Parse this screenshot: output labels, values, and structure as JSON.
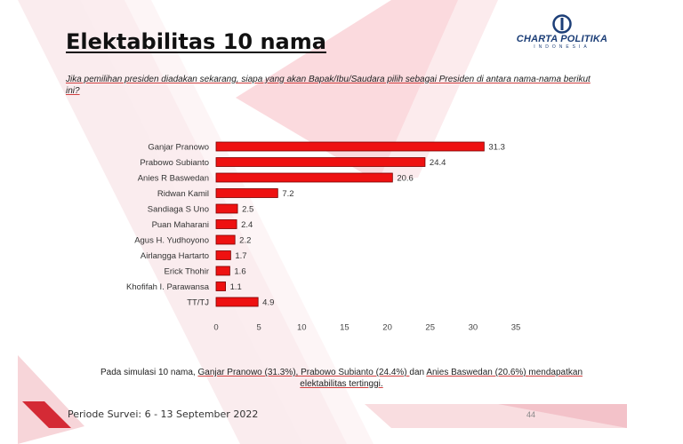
{
  "slide": {
    "title": "Elektabilitas 10 nama",
    "question": "Jika pemilihan presiden diadakan sekarang, siapa yang akan Bapak/Ibu/Saudara pilih sebagai Presiden di antara nama-nama berikut ini?",
    "note": {
      "prefix": "Pada simulasi 10 nama, ",
      "p1": "Ganjar Pranowo (31.3%), ",
      "p2": "Prabowo Subianto (24.4%) ",
      "mid": "dan ",
      "p3": "Anies Baswedan (20.6%) ",
      "p4": "mendapatkan",
      "p5": "elektabilitas tertinggi."
    },
    "period": "Periode Survei: 6 - 13 September 2022",
    "page_number": "44"
  },
  "logo": {
    "name": "CHARTA POLITIKA",
    "sub": "INDONESIA"
  },
  "colors": {
    "bar": "#ee1111",
    "bar_edge": "#7a0000",
    "accent_shape": "#d42a35",
    "logo": "#1d3f78"
  },
  "chart_data": {
    "type": "bar",
    "orientation": "horizontal",
    "categories": [
      "Ganjar Pranowo",
      "Prabowo Subianto",
      "Anies R Baswedan",
      "Ridwan Kamil",
      "Sandiaga S Uno",
      "Puan Maharani",
      "Agus H. Yudhoyono",
      "Airlangga Hartarto",
      "Erick Thohir",
      "Khofifah I. Parawansa",
      "TT/TJ"
    ],
    "values": [
      31.3,
      24.4,
      20.6,
      7.2,
      2.5,
      2.4,
      2.2,
      1.7,
      1.6,
      1.1,
      4.9
    ],
    "xlim": [
      0,
      35
    ],
    "xticks": [
      0,
      5,
      10,
      15,
      20,
      25,
      30,
      35
    ],
    "grid": false,
    "legend": "none"
  }
}
